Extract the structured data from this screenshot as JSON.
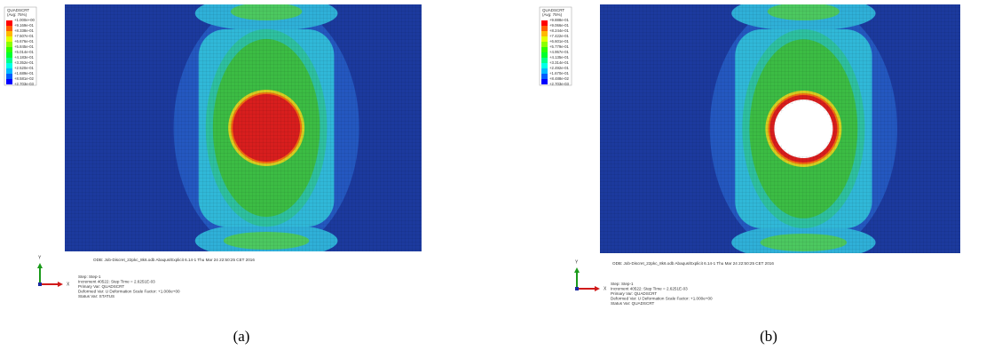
{
  "panels": [
    {
      "legend": {
        "title": "QUADSCRT",
        "avg": "(Avg: 75%)",
        "labels": [
          "+1.000e+00",
          "+9.169e-01",
          "+8.338e-01",
          "+7.507e-01",
          "+6.676e-01",
          "+5.845e-01",
          "+5.014e-01",
          "+4.183e-01",
          "+3.352e-01",
          "+2.520e-01",
          "+1.689e-01",
          "+8.581e-02",
          "+2.703e-03"
        ]
      },
      "footer": {
        "odb": "ODB: Job-Discret_22pkc_8k6.odb   Abaqus/Explicit 6.14-1   Thu Mar 24 22:50:25 CET 2016",
        "step": "Step: Step-1",
        "increment": "Increment   40522: Step Time =   2.6251E-03",
        "primary": "Primary Var: QUADSCRT",
        "deformed": "Deformed Var: U   Deformation Scale Factor: +1.000e+00",
        "status": "Status Var: STATUS"
      },
      "axes": {
        "y": "Y",
        "x": "X"
      },
      "caption": "(a)"
    },
    {
      "legend": {
        "title": "QUADSCRT",
        "avg": "(Avg: 75%)",
        "labels": [
          "+9.888e-01",
          "+9.066e-01",
          "+8.244e-01",
          "+7.422e-01",
          "+6.601e-01",
          "+5.779e-01",
          "+4.957e-01",
          "+4.135e-01",
          "+3.314e-01",
          "+2.492e-01",
          "+1.670e-01",
          "+8.488e-02",
          "+2.703e-03"
        ]
      },
      "footer": {
        "odb": "ODB: Job-Discret_22pkc_8k6.odb   Abaqus/Explicit 6.14-1   Thu Mar 24 22:50:25 CET 2016",
        "step": "Step: Step-1",
        "increment": "Increment   40522: Step Time =   2.6251E-03",
        "primary": "Primary Var: QUADSCRT",
        "deformed": "Deformed Var: U   Deformation Scale Factor: +1.000e+00",
        "status": "Status Var: QUADSCRT"
      },
      "axes": {
        "y": "Y",
        "x": "X"
      },
      "caption": "(b)"
    }
  ]
}
